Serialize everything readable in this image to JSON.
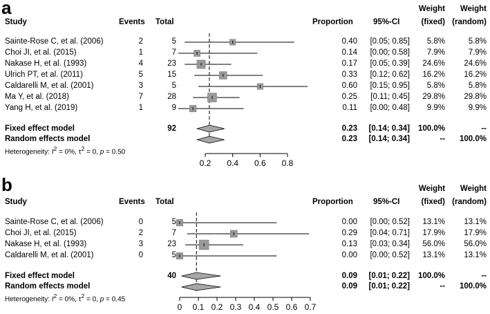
{
  "chart_data": [
    {
      "type": "forest",
      "panel_label": "a",
      "columns": {
        "study": "Study",
        "events": "Events",
        "total": "Total",
        "proportion": "Proportion",
        "ci": "95%-CI",
        "weight_fixed": [
          "Weight",
          "(fixed)"
        ],
        "weight_random": [
          "Weight",
          "(random)"
        ]
      },
      "xlim": [
        0,
        0.85
      ],
      "xticks": [
        0.2,
        0.4,
        0.6,
        0.8
      ],
      "xtick_labels": [
        "0.2",
        "0.4",
        "0.6",
        "0.8"
      ],
      "pooled_reference": 0.23,
      "studies": [
        {
          "name": "Sainte-Rose C, et al. (2006)",
          "events": "2",
          "total": "5",
          "prop": 0.4,
          "lo": 0.05,
          "hi": 0.85,
          "prop_text": "0.40",
          "ci_text": "[0.05; 0.85]",
          "wf": "5.8%",
          "wr": "5.8%",
          "weight": 5.8
        },
        {
          "name": "Choi JI, et al. (2015)",
          "events": "1",
          "total": "7",
          "prop": 0.14,
          "lo": 0.0,
          "hi": 0.58,
          "prop_text": "0.14",
          "ci_text": "[0.00; 0.58]",
          "wf": "7.9%",
          "wr": "7.9%",
          "weight": 7.9
        },
        {
          "name": "Nakase H, et al. (1993)",
          "events": "4",
          "total": "23",
          "prop": 0.17,
          "lo": 0.05,
          "hi": 0.39,
          "prop_text": "0.17",
          "ci_text": "[0.05; 0.39]",
          "wf": "24.6%",
          "wr": "24.6%",
          "weight": 24.6
        },
        {
          "name": "Ulrich PT, et al. (2011)",
          "events": "5",
          "total": "15",
          "prop": 0.33,
          "lo": 0.12,
          "hi": 0.62,
          "prop_text": "0.33",
          "ci_text": "[0.12; 0.62]",
          "wf": "16.2%",
          "wr": "16.2%",
          "weight": 16.2
        },
        {
          "name": "Caldarelli M, et al. (2001)",
          "events": "3",
          "total": "5",
          "prop": 0.6,
          "lo": 0.15,
          "hi": 0.95,
          "prop_text": "0.60",
          "ci_text": "[0.15; 0.95]",
          "wf": "5.8%",
          "wr": "5.8%",
          "weight": 5.8
        },
        {
          "name": "Ma Y, et al. (2018)",
          "events": "7",
          "total": "28",
          "prop": 0.25,
          "lo": 0.11,
          "hi": 0.45,
          "prop_text": "0.25",
          "ci_text": "[0.11; 0.45]",
          "wf": "29.8%",
          "wr": "29.8%",
          "weight": 29.8
        },
        {
          "name": "Yang H, et al. (2019)",
          "events": "1",
          "total": "9",
          "prop": 0.11,
          "lo": 0.0,
          "hi": 0.48,
          "prop_text": "0.11",
          "ci_text": "[0.00; 0.48]",
          "wf": "9.9%",
          "wr": "9.9%",
          "weight": 9.9
        }
      ],
      "fixed": {
        "label": "Fixed effect model",
        "total": "92",
        "prop": 0.23,
        "lo": 0.14,
        "hi": 0.34,
        "prop_text": "0.23",
        "ci_text": "[0.14; 0.34]",
        "wf": "100.0%",
        "wr": "--"
      },
      "random": {
        "label": "Random effects model",
        "prop": 0.23,
        "lo": 0.14,
        "hi": 0.34,
        "prop_text": "0.23",
        "ci_text": "[0.14; 0.34]",
        "wf": "--",
        "wr": "100.0%"
      },
      "heterogeneity": {
        "prefix": "Heterogeneity: ",
        "i2_sym": "I",
        "i2_exp": "2",
        "i2_val": " = 0%, ",
        "tau_sym": "τ",
        "tau_exp": "2",
        "tau_val": " = 0, ",
        "p_sym": "p",
        "p_val": " = 0.50"
      }
    },
    {
      "type": "forest",
      "panel_label": "b",
      "columns": {
        "study": "Study",
        "events": "Events",
        "total": "Total",
        "proportion": "Proportion",
        "ci": "95%-CI",
        "weight_fixed": [
          "Weight",
          "(fixed)"
        ],
        "weight_random": [
          "Weight",
          "(random)"
        ]
      },
      "xlim": [
        0,
        0.7
      ],
      "xticks": [
        0,
        0.1,
        0.2,
        0.3,
        0.4,
        0.5,
        0.6,
        0.7
      ],
      "xtick_labels": [
        "0",
        "0.1",
        "0.2",
        "0.3",
        "0.4",
        "0.5",
        "0.6",
        "0.7"
      ],
      "pooled_reference": 0.09,
      "studies": [
        {
          "name": "Sainte-Rose C, et al. (2006)",
          "events": "0",
          "total": "5",
          "prop": 0.0,
          "lo": 0.0,
          "hi": 0.52,
          "prop_text": "0.00",
          "ci_text": "[0.00; 0.52]",
          "wf": "13.1%",
          "wr": "13.1%",
          "weight": 13.1
        },
        {
          "name": "Choi JI, et al. (2015)",
          "events": "2",
          "total": "7",
          "prop": 0.29,
          "lo": 0.04,
          "hi": 0.71,
          "prop_text": "0.29",
          "ci_text": "[0.04; 0.71]",
          "wf": "17.9%",
          "wr": "17.9%",
          "weight": 17.9
        },
        {
          "name": "Nakase H, et al. (1993)",
          "events": "3",
          "total": "23",
          "prop": 0.13,
          "lo": 0.03,
          "hi": 0.34,
          "prop_text": "0.13",
          "ci_text": "[0.03; 0.34]",
          "wf": "56.0%",
          "wr": "56.0%",
          "weight": 56.0
        },
        {
          "name": "Caldarelli M, et al. (2001)",
          "events": "0",
          "total": "5",
          "prop": 0.0,
          "lo": 0.0,
          "hi": 0.52,
          "prop_text": "0.00",
          "ci_text": "[0.00; 0.52]",
          "wf": "13.1%",
          "wr": "13.1%",
          "weight": 13.1
        }
      ],
      "fixed": {
        "label": "Fixed effect model",
        "total": "40",
        "prop": 0.09,
        "lo": 0.01,
        "hi": 0.22,
        "prop_text": "0.09",
        "ci_text": "[0.01; 0.22]",
        "wf": "100.0%",
        "wr": "--"
      },
      "random": {
        "label": "Random effects model",
        "prop": 0.09,
        "lo": 0.01,
        "hi": 0.22,
        "prop_text": "0.09",
        "ci_text": "[0.01; 0.22]",
        "wf": "--",
        "wr": "100.0%"
      },
      "heterogeneity": {
        "prefix": "Heterogeneity: ",
        "i2_sym": "I",
        "i2_exp": "2",
        "i2_val": " = 0%, ",
        "tau_sym": "τ",
        "tau_exp": "2",
        "tau_val": " = 0, ",
        "p_sym": "p",
        "p_val": " = 0.45"
      }
    }
  ],
  "colors": {
    "box": "#999999",
    "box_stroke": "#777777",
    "diamond": "#a6a6a6",
    "line": "#000000"
  }
}
